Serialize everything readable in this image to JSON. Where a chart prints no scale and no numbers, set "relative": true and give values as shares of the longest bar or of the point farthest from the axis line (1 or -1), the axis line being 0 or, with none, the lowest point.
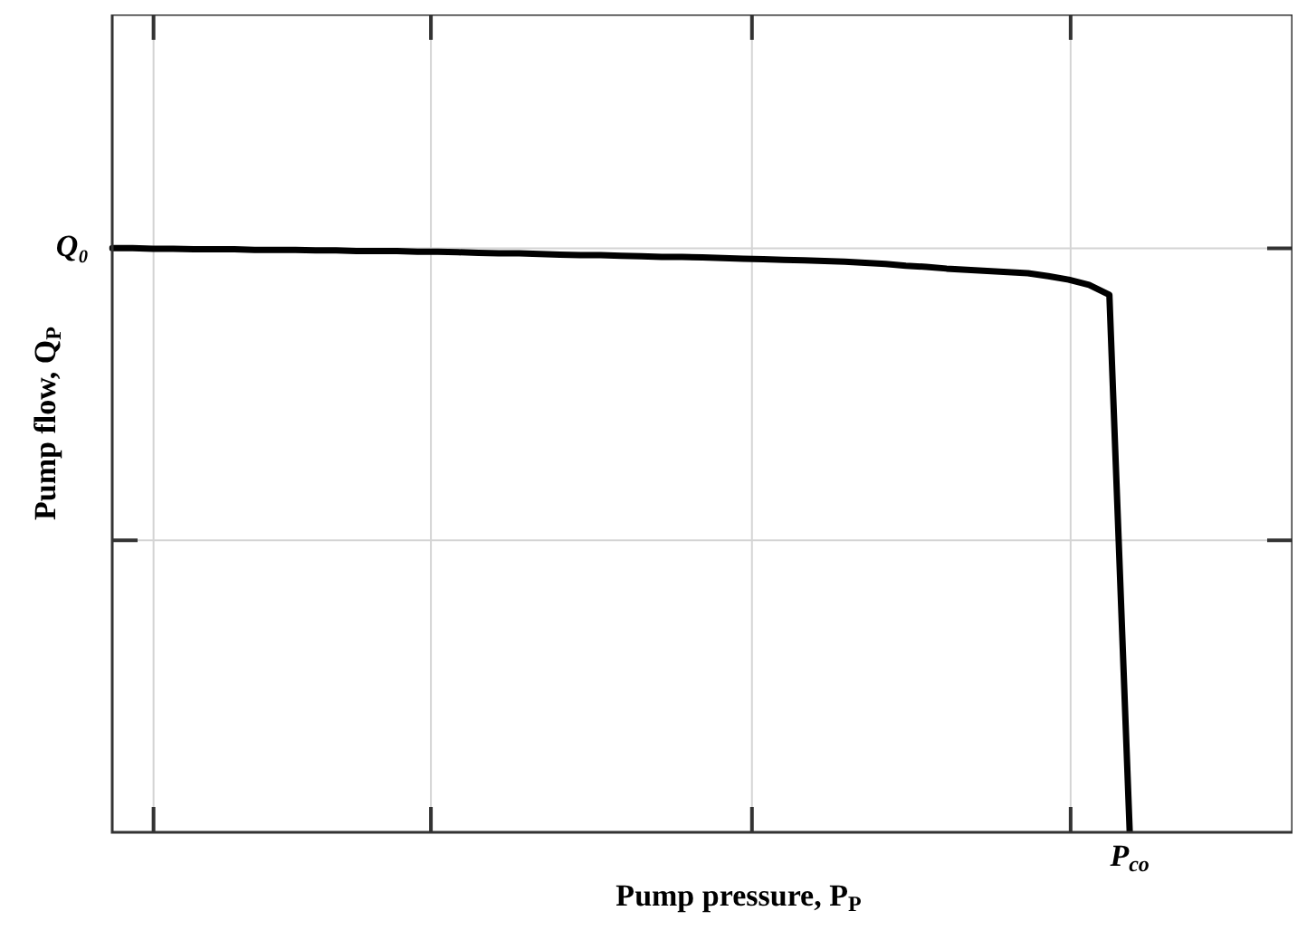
{
  "chart_data": {
    "type": "line",
    "relative": true,
    "xlabel": "Pump pressure, P$_{P}$",
    "ylabel": "Pump flow, Q$_{P}$",
    "categories": [
      null,
      null,
      null,
      null,
      null,
      null,
      null,
      null,
      null,
      null,
      null,
      null,
      null,
      null,
      null,
      null,
      null,
      null,
      null,
      null,
      null,
      null,
      null,
      null,
      null,
      null,
      null,
      null,
      null,
      null,
      null,
      null,
      null,
      null,
      null,
      null,
      null,
      null,
      null,
      null,
      null,
      null,
      null,
      null,
      null,
      null,
      null,
      null,
      null,
      null,
      null,
      null,
      null,
      null,
      null,
      null,
      null,
      null,
      null
    ],
    "series": [
      {
        "color": "#000000",
        "values": [
          1.0,
          1.0,
          0.999,
          0.999,
          0.998,
          0.998,
          0.998,
          0.997,
          0.997,
          0.997,
          0.996,
          0.996,
          0.995,
          0.995,
          0.995,
          0.994,
          0.994,
          0.993,
          0.992,
          0.991,
          0.991,
          0.99,
          0.989,
          0.988,
          0.988,
          0.987,
          0.986,
          0.985,
          0.985,
          0.984,
          0.983,
          0.982,
          0.981,
          0.98,
          0.979,
          0.978,
          0.977,
          0.975,
          0.973,
          0.97,
          0.968,
          0.965,
          0.963,
          0.961,
          0.959,
          0.957,
          0.952,
          0.946,
          0.937,
          0.92,
          0,
          null,
          null,
          null,
          null,
          null,
          null,
          null,
          null
        ]
      }
    ],
    "annotations": [
      "Q₀",
      "P$_{co}$"
    ],
    "grid": true,
    "legend": false,
    "marker": "none",
    "line_style": "solid"
  }
}
